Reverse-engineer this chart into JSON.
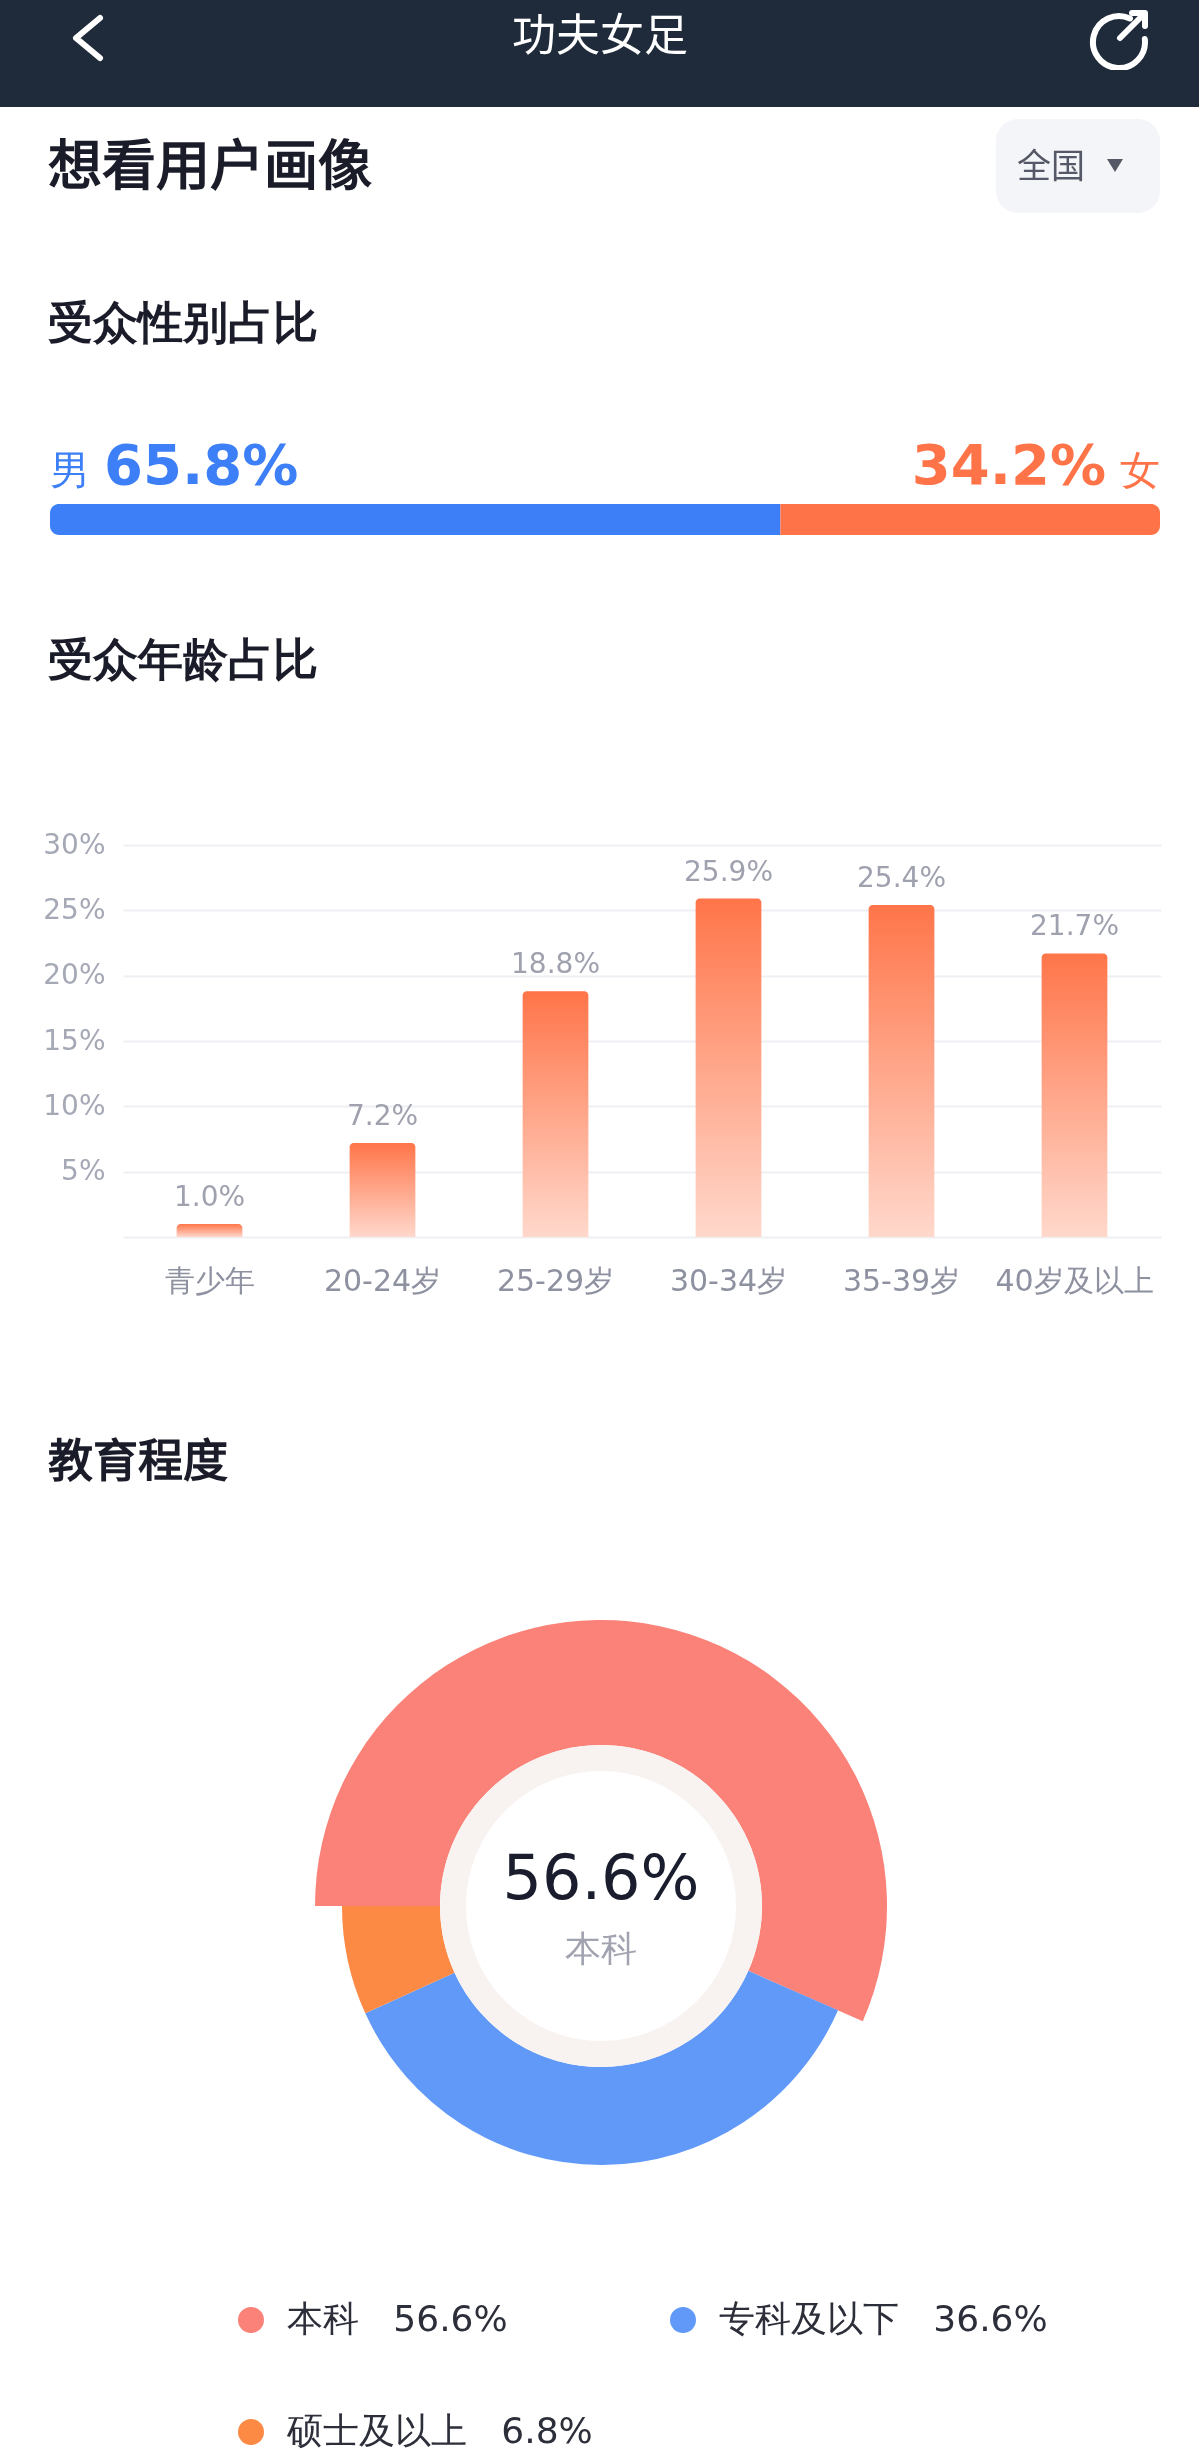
{
  "chart_data": [
    {
      "type": "other",
      "title": "功夫女足",
      "subtitle": "想看用户画像",
      "annotations": [
        "全国"
      ]
    },
    {
      "type": "bar",
      "title": "受众性别占比",
      "orientation": "horizontal",
      "stacked": true,
      "categories": [
        null
      ],
      "series": [
        {
          "name": "男",
          "color": "#3d7ff6",
          "values": [
            65.8
          ],
          "value_labels": [
            "65.8%"
          ]
        },
        {
          "name": "女",
          "color": "#ff7349",
          "values": [
            34.2
          ],
          "value_labels": [
            "34.2%"
          ]
        }
      ],
      "xlim": [
        0,
        100
      ],
      "legend": false
    },
    {
      "type": "bar",
      "title": "受众年龄占比",
      "categories": [
        "青少年",
        "20-24岁",
        "25-29岁",
        "30-34岁",
        "35-39岁",
        "40岁及以上"
      ],
      "values": [
        1.0,
        7.2,
        18.8,
        25.9,
        25.4,
        21.7
      ],
      "value_labels": [
        "1.0%",
        "7.2%",
        "18.8%",
        "25.9%",
        "25.4%",
        "21.7%"
      ],
      "color": "#ff7549",
      "ylim": [
        0,
        30
      ],
      "yticks": [
        {
          "value": 0,
          "label": null
        },
        {
          "value": 5,
          "label": "5%"
        },
        {
          "value": 10,
          "label": "10%"
        },
        {
          "value": 15,
          "label": "15%"
        },
        {
          "value": 20,
          "label": "20%"
        },
        {
          "value": 25,
          "label": "25%"
        },
        {
          "value": 30,
          "label": "30%"
        }
      ],
      "grid": "y"
    },
    {
      "type": "donut",
      "title": "教育程度",
      "categories": [
        "本科",
        "专科及以下",
        "硕士及以上"
      ],
      "values": [
        56.6,
        36.6,
        6.8
      ],
      "colors": [
        "#fa8278",
        "#6199f9",
        "#fc8a45"
      ],
      "value_labels": [
        "56.6%",
        "36.6%",
        "6.8%"
      ],
      "legend": "bottom",
      "annotations": [
        "56.6%",
        "本科"
      ]
    }
  ]
}
